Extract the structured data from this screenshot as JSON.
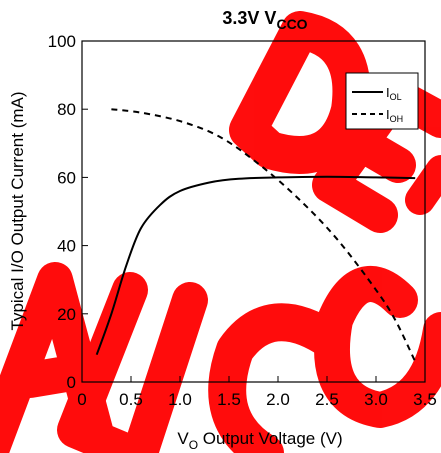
{
  "chart_data": {
    "type": "line",
    "title": {
      "main": "3.3V V",
      "sub": "CCO"
    },
    "xlabel": {
      "pre": "V",
      "sub": "O",
      "post": " Output Voltage (V)"
    },
    "ylabel": "Typical I/O Output Current (mA)",
    "xlim": [
      0,
      3.5
    ],
    "ylim": [
      0,
      100
    ],
    "xticks": [
      "0",
      "0.5",
      "1.0",
      "1.5",
      "2.0",
      "2.5",
      "3.0",
      "3.5"
    ],
    "yticks": [
      "0",
      "20",
      "40",
      "60",
      "80",
      "100"
    ],
    "legend_position": "top-right",
    "series": [
      {
        "name": {
          "main": "I",
          "sub": "OL"
        },
        "style": "solid",
        "color": "#000000",
        "points": [
          [
            0.15,
            8
          ],
          [
            0.3,
            20
          ],
          [
            0.45,
            34
          ],
          [
            0.6,
            45
          ],
          [
            0.8,
            52
          ],
          [
            1.0,
            56
          ],
          [
            1.3,
            58.5
          ],
          [
            1.6,
            59.6
          ],
          [
            2.0,
            60
          ],
          [
            2.5,
            60.2
          ],
          [
            3.0,
            60
          ],
          [
            3.4,
            59.8
          ]
        ]
      },
      {
        "name": {
          "main": "I",
          "sub": "OH"
        },
        "style": "dashed",
        "color": "#000000",
        "points": [
          [
            0.3,
            80
          ],
          [
            0.6,
            79
          ],
          [
            1.0,
            76.5
          ],
          [
            1.4,
            72
          ],
          [
            1.8,
            64
          ],
          [
            2.2,
            54
          ],
          [
            2.6,
            42
          ],
          [
            3.0,
            27
          ],
          [
            3.2,
            18
          ],
          [
            3.4,
            6
          ]
        ]
      }
    ],
    "watermark_color": "#ff0000"
  }
}
